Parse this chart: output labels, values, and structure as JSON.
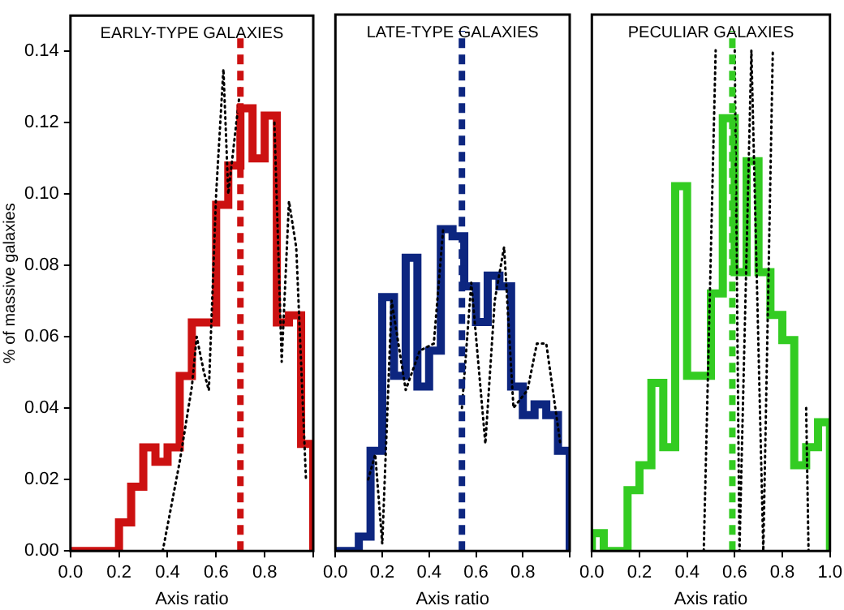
{
  "chart_data": [
    {
      "type": "histogram",
      "title": "EARLY-TYPE GALAXIES",
      "xlabel": "Axis ratio",
      "ylabel": "% of massive galaxies",
      "bins": [
        0,
        0.05,
        0.1,
        0.15,
        0.2,
        0.25,
        0.3,
        0.35,
        0.4,
        0.45,
        0.5,
        0.55,
        0.6,
        0.65,
        0.7,
        0.75,
        0.8,
        0.85,
        0.9,
        0.95,
        1.0
      ],
      "series": [
        {
          "color": "#cc1111",
          "values": [
            0,
            0,
            0,
            0,
            0.008,
            0.018,
            0.029,
            0.025,
            0.029,
            0.049,
            0.064,
            0.064,
            0.097,
            0.108,
            0.124,
            0.11,
            0.122,
            0.064,
            0.066,
            0.03
          ]
        },
        {
          "type": "line",
          "color": "#000000",
          "line_style": "dotted",
          "x": [
            0.38,
            0.45,
            0.5,
            0.52,
            0.55,
            0.57,
            0.6,
            0.63,
            0.65,
            0.7,
            0.74,
            0.82,
            0.84,
            0.87,
            0.9,
            0.93,
            0.97
          ],
          "values": [
            0,
            0.025,
            0.046,
            0.06,
            0.05,
            0.045,
            0.1,
            0.135,
            0.1,
            0.13,
            null,
            null,
            0.12,
            0.053,
            0.098,
            0.085,
            0.02
          ]
        }
      ],
      "ref_lines": [
        {
          "axis": "x",
          "value": 0.7,
          "color": "#cc1111",
          "line_style": "dashed"
        }
      ],
      "xlim": [
        0,
        1
      ],
      "ylim": [
        0,
        0.15
      ],
      "xticks": [
        {
          "value": 0,
          "label": "0.0"
        },
        {
          "value": 0.2,
          "label": "0.2"
        },
        {
          "value": 0.4,
          "label": "0.4"
        },
        {
          "value": 0.6,
          "label": "0.6"
        },
        {
          "value": 0.8,
          "label": "0.8"
        },
        {
          "value": 1,
          "label": null
        }
      ],
      "yticks": [
        {
          "value": 0,
          "label": "0.00"
        },
        {
          "value": 0.02,
          "label": "0.02"
        },
        {
          "value": 0.04,
          "label": "0.04"
        },
        {
          "value": 0.06,
          "label": "0.06"
        },
        {
          "value": 0.08,
          "label": "0.08"
        },
        {
          "value": 0.1,
          "label": "0.10"
        },
        {
          "value": 0.12,
          "label": "0.12"
        },
        {
          "value": 0.14,
          "label": "0.14"
        }
      ],
      "grid": false,
      "legend": false
    },
    {
      "type": "histogram",
      "title": "LATE-TYPE GALAXIES",
      "xlabel": "Axis ratio",
      "bins": [
        0,
        0.05,
        0.1,
        0.15,
        0.2,
        0.25,
        0.3,
        0.35,
        0.4,
        0.45,
        0.5,
        0.55,
        0.6,
        0.65,
        0.7,
        0.75,
        0.8,
        0.85,
        0.9,
        0.95,
        1.0
      ],
      "series": [
        {
          "color": "#0d2680",
          "values": [
            0,
            0,
            0.004,
            0.028,
            0.071,
            0.049,
            0.082,
            0.046,
            0.056,
            0.09,
            0.088,
            0.074,
            0.064,
            0.077,
            0.074,
            0.046,
            0.038,
            0.041,
            0.038,
            0.028
          ]
        },
        {
          "type": "line",
          "color": "#000000",
          "line_style": "dotted",
          "x": [
            0.14,
            0.17,
            0.2,
            0.24,
            0.3,
            0.36,
            0.42,
            0.46,
            0.48,
            0.5,
            0.54,
            0.58,
            0.64,
            0.68,
            0.72,
            0.76,
            0.82,
            0.86,
            0.9,
            0.96
          ],
          "values": [
            0.02,
            0.027,
            0.002,
            0.07,
            0.045,
            0.056,
            0.058,
            0.09,
            null,
            null,
            0.04,
            0.075,
            0.03,
            0.07,
            0.085,
            0.04,
            0.045,
            0.058,
            0.058,
            0.03
          ]
        }
      ],
      "ref_lines": [
        {
          "axis": "x",
          "value": 0.54,
          "color": "#0d2680",
          "line_style": "dashed"
        }
      ],
      "xlim": [
        0,
        1
      ],
      "ylim": [
        0,
        0.15
      ],
      "xticks": [
        {
          "value": 0,
          "label": "0.0"
        },
        {
          "value": 0.2,
          "label": "0.2"
        },
        {
          "value": 0.4,
          "label": "0.4"
        },
        {
          "value": 0.6,
          "label": "0.6"
        },
        {
          "value": 0.8,
          "label": "0.8"
        },
        {
          "value": 1,
          "label": null
        }
      ],
      "yticks": [
        {
          "value": 0,
          "label": null
        },
        {
          "value": 0.02,
          "label": null
        },
        {
          "value": 0.04,
          "label": null
        },
        {
          "value": 0.06,
          "label": null
        },
        {
          "value": 0.08,
          "label": null
        },
        {
          "value": 0.1,
          "label": null
        },
        {
          "value": 0.12,
          "label": null
        },
        {
          "value": 0.14,
          "label": null
        }
      ],
      "tick_labels": "x",
      "grid": false,
      "legend": false
    },
    {
      "type": "histogram",
      "title": "PECULIAR GALAXIES",
      "xlabel": "Axis ratio",
      "bins": [
        0,
        0.05,
        0.1,
        0.15,
        0.2,
        0.25,
        0.3,
        0.35,
        0.4,
        0.45,
        0.5,
        0.55,
        0.6,
        0.65,
        0.7,
        0.75,
        0.8,
        0.85,
        0.9,
        0.95,
        1.0
      ],
      "series": [
        {
          "color": "#33cc22",
          "values": [
            0.005,
            0,
            0,
            0.017,
            0.024,
            0.047,
            0.029,
            0.102,
            0.049,
            0.049,
            0.072,
            0.121,
            0.078,
            0.109,
            0.078,
            0.066,
            0.059,
            0.024,
            0.029,
            0.036
          ]
        },
        {
          "type": "line",
          "color": "#000000",
          "line_style": "dotted",
          "x": [
            0.47,
            0.52,
            0.55,
            0.6,
            0.62,
            0.67,
            0.72,
            0.76,
            0.83,
            0.86,
            0.9,
            0.91
          ],
          "values": [
            0,
            0.14,
            null,
            0.14,
            0,
            0.14,
            0,
            0.14,
            null,
            null,
            0.04,
            0
          ]
        }
      ],
      "ref_lines": [
        {
          "axis": "x",
          "value": 0.59,
          "color": "#33cc22",
          "line_style": "dashed"
        }
      ],
      "xlim": [
        0,
        1
      ],
      "ylim": [
        0,
        0.15
      ],
      "xticks": [
        {
          "value": 0,
          "label": "0.0"
        },
        {
          "value": 0.2,
          "label": "0.2"
        },
        {
          "value": 0.4,
          "label": "0.4"
        },
        {
          "value": 0.6,
          "label": "0.6"
        },
        {
          "value": 0.8,
          "label": "0.8"
        },
        {
          "value": 1,
          "label": "1.0"
        }
      ],
      "yticks": [
        {
          "value": 0,
          "label": null
        },
        {
          "value": 0.02,
          "label": null
        },
        {
          "value": 0.04,
          "label": null
        },
        {
          "value": 0.06,
          "label": null
        },
        {
          "value": 0.08,
          "label": null
        },
        {
          "value": 0.1,
          "label": null
        },
        {
          "value": 0.12,
          "label": null
        },
        {
          "value": 0.14,
          "label": null
        }
      ],
      "tick_labels": "x",
      "grid": false,
      "legend": false
    }
  ]
}
